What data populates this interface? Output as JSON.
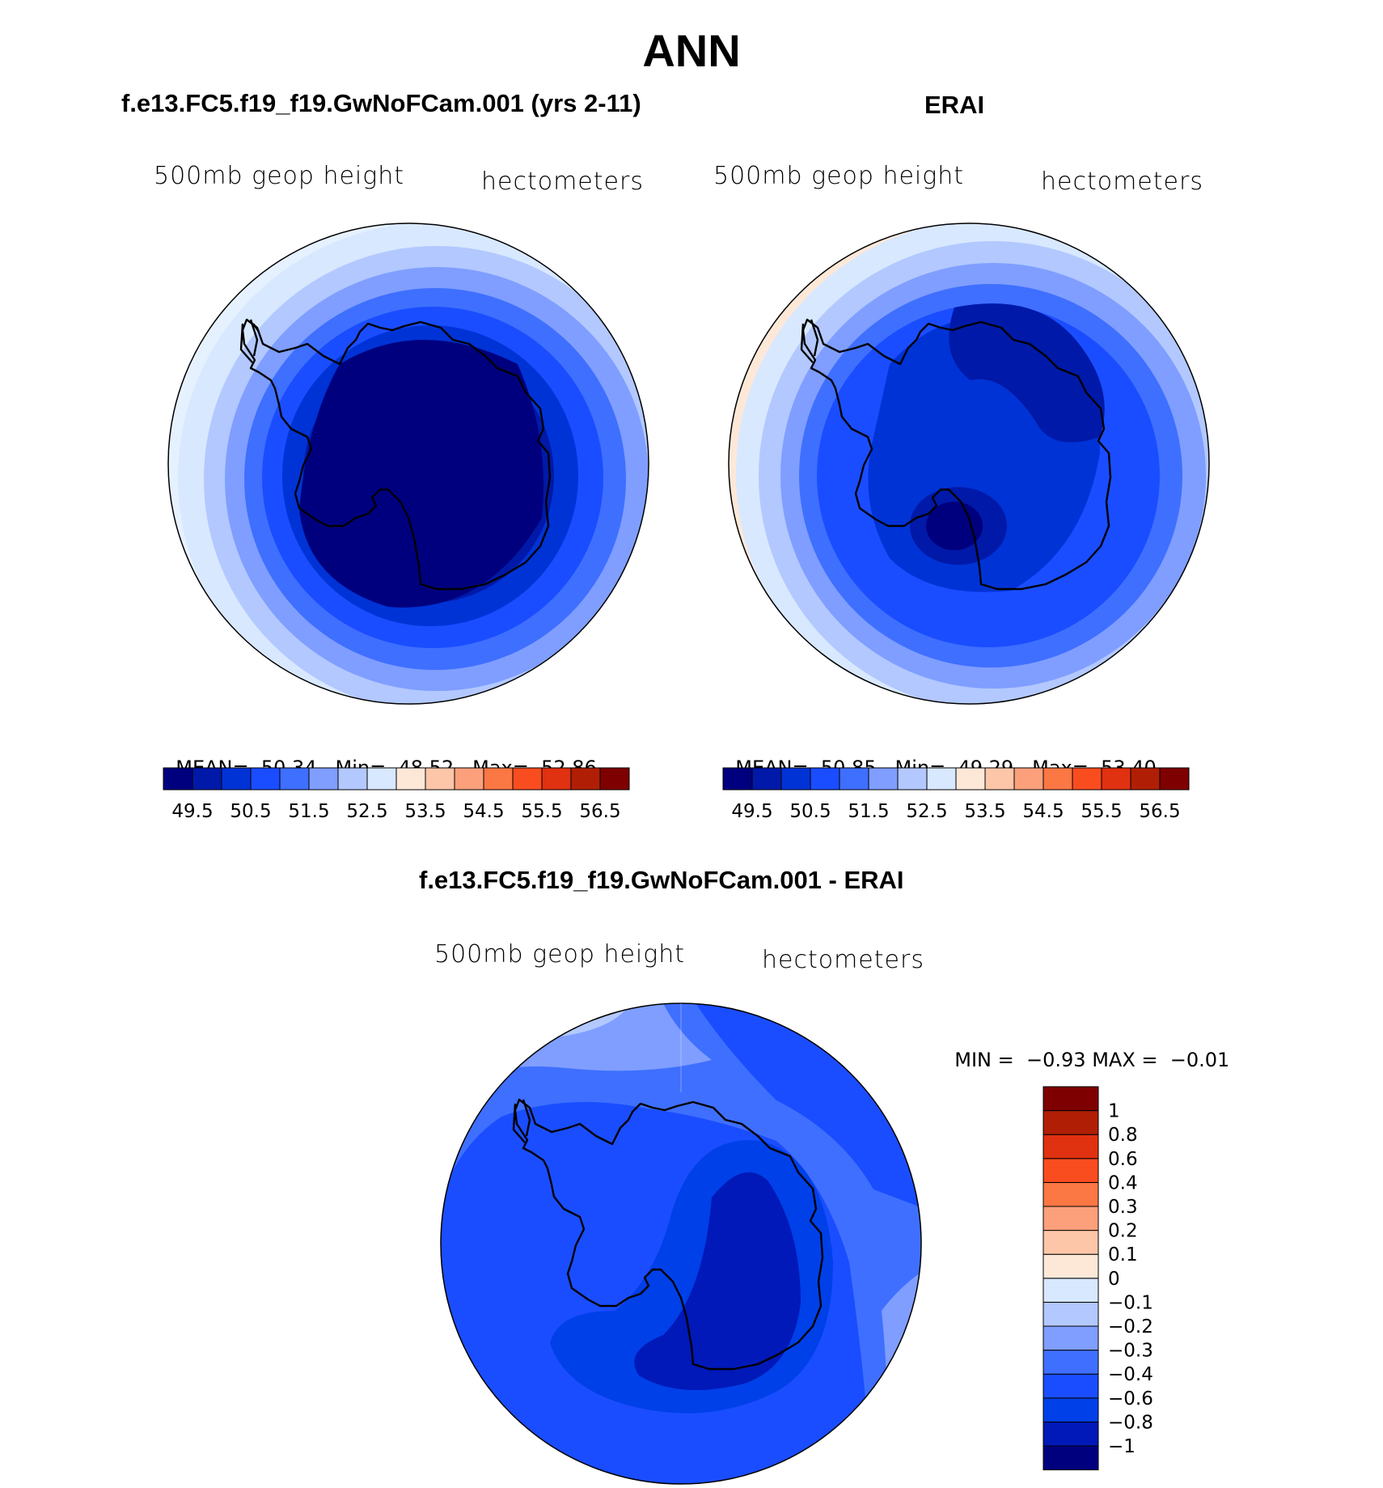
{
  "title": "ANN",
  "panels": [
    {
      "id": "model",
      "title": "f.e13.FC5.f19_f19.GwNoFCam.001 (yrs 2-11)",
      "variable": "500mb geop height",
      "units": "hectometers",
      "stats": {
        "mean_label": "MEAN=",
        "mean": "50.34",
        "min_label": "Min=",
        "min": "48.52",
        "max_label": "Max=",
        "max": "52.86"
      }
    },
    {
      "id": "obs",
      "title": "ERAI",
      "variable": "500mb geop height",
      "units": "hectometers",
      "stats": {
        "mean_label": "MEAN=",
        "mean": "50.85",
        "min_label": "Min=",
        "min": "49.29",
        "max_label": "Max=",
        "max": "53.40"
      }
    },
    {
      "id": "diff",
      "title": "f.e13.FC5.f19_f19.GwNoFCam.001 - ERAI",
      "variable": "500mb geop height",
      "units": "hectometers",
      "stats": {
        "min_label": "MIN =",
        "min": "−0.93",
        "max_label": "MAX =",
        "max": "−0.01"
      }
    }
  ],
  "colorbar_abs": {
    "colors": [
      "#00007f",
      "#0019a8",
      "#0033d6",
      "#1a4dff",
      "#3f6fff",
      "#7f9eff",
      "#b2c8ff",
      "#d8e8ff",
      "#fde8d8",
      "#fdc6a8",
      "#fca07c",
      "#fb7744",
      "#fa4d1f",
      "#e03110",
      "#b01f05",
      "#7f0000"
    ],
    "labels": [
      "49.5",
      "50.5",
      "51.5",
      "52.5",
      "53.5",
      "54.5",
      "55.5",
      "56.5"
    ]
  },
  "colorbar_diff": {
    "colors": [
      "#00007f",
      "#0019b8",
      "#0040e8",
      "#1a4dff",
      "#3f6fff",
      "#7f9eff",
      "#b2c8ff",
      "#d8e8ff",
      "#fde8d8",
      "#fdc6a8",
      "#fca07c",
      "#fb7744",
      "#fa4d1f",
      "#e03110",
      "#b01f05",
      "#7f0000"
    ],
    "labels": [
      "−1",
      "−0.8",
      "−0.6",
      "−0.4",
      "−0.3",
      "−0.2",
      "−0.1",
      "0",
      "0.1",
      "0.2",
      "0.3",
      "0.4",
      "0.6",
      "0.8",
      "1"
    ]
  }
}
